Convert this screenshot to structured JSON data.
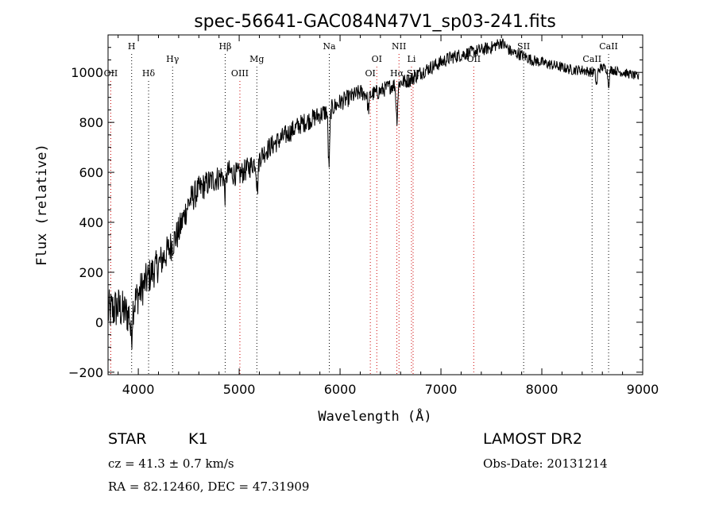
{
  "chart_data": {
    "type": "line",
    "title": "spec-56641-GAC084N47V1_sp03-241.fits",
    "xlabel": "Wavelength (Å)",
    "ylabel": "Flux (relative)",
    "xlim": [
      3700,
      9000
    ],
    "ylim": [
      -210,
      1150
    ],
    "x_ticks": [
      4000,
      5000,
      6000,
      7000,
      8000,
      9000
    ],
    "y_ticks": [
      -200,
      0,
      200,
      400,
      600,
      800,
      1000
    ],
    "x_tick_labels": [
      "4000",
      "5000",
      "6000",
      "7000",
      "8000",
      "9000"
    ],
    "y_tick_labels": [
      "−200",
      "0",
      "200",
      "400",
      "600",
      "800",
      "1000"
    ],
    "grid": false,
    "line_color": "#000000",
    "marker_color_emission": "#cc0000",
    "marker_color_absorption": "#000000",
    "continuum": {
      "x": [
        3700,
        3800,
        3900,
        4000,
        4100,
        4200,
        4300,
        4400,
        4500,
        4600,
        4700,
        4800,
        4900,
        5000,
        5100,
        5200,
        5300,
        5400,
        5500,
        5600,
        5700,
        5800,
        5900,
        6000,
        6100,
        6200,
        6300,
        6400,
        6500,
        6600,
        6700,
        6800,
        6900,
        7000,
        7100,
        7200,
        7300,
        7400,
        7500,
        7600,
        7700,
        7800,
        7900,
        8000,
        8100,
        8200,
        8300,
        8400,
        8500,
        8600,
        8700,
        8800,
        8900,
        8960
      ],
      "y": [
        40,
        60,
        30,
        110,
        180,
        230,
        290,
        360,
        480,
        530,
        560,
        580,
        600,
        590,
        620,
        660,
        700,
        730,
        760,
        790,
        810,
        830,
        850,
        880,
        900,
        920,
        910,
        925,
        945,
        960,
        970,
        1000,
        1020,
        1040,
        1060,
        1070,
        1080,
        1090,
        1100,
        1120,
        1080,
        1070,
        1050,
        1040,
        1030,
        1020,
        1010,
        1010,
        1000,
        1020,
        1010,
        1000,
        990,
        980
      ]
    },
    "absorption_features": [
      {
        "x": 3930,
        "depth": 120
      },
      {
        "x": 4860,
        "depth": 80
      },
      {
        "x": 5180,
        "depth": 120
      },
      {
        "x": 5890,
        "depth": 220
      },
      {
        "x": 6280,
        "depth": 60
      },
      {
        "x": 6563,
        "depth": 140
      },
      {
        "x": 8542,
        "depth": 60
      },
      {
        "x": 8662,
        "depth": 60
      }
    ],
    "noise_amplitude": [
      90,
      70,
      55,
      45,
      40,
      35,
      30,
      28,
      25,
      22,
      20,
      18
    ],
    "line_markers": [
      {
        "label": "H",
        "x": 3934,
        "row": 0,
        "kind": "absorption"
      },
      {
        "label": "OII",
        "x": 3727,
        "row": 2,
        "kind": "emission"
      },
      {
        "label": "Hδ",
        "x": 4102,
        "row": 2,
        "kind": "absorption"
      },
      {
        "label": "Hγ",
        "x": 4340,
        "row": 1,
        "kind": "absorption"
      },
      {
        "label": "Hβ",
        "x": 4861,
        "row": 0,
        "kind": "absorption"
      },
      {
        "label": "OIII",
        "x": 5007,
        "row": 2,
        "kind": "emission"
      },
      {
        "label": "Mg",
        "x": 5175,
        "row": 1,
        "kind": "absorption"
      },
      {
        "label": "Na",
        "x": 5893,
        "row": 0,
        "kind": "absorption"
      },
      {
        "label": "OI",
        "x": 6300,
        "row": 2,
        "kind": "emission"
      },
      {
        "label": "OI",
        "x": 6364,
        "row": 1,
        "kind": "emission"
      },
      {
        "label": "NII",
        "x": 6584,
        "row": 0,
        "kind": "emission"
      },
      {
        "label": "Hα",
        "x": 6563,
        "row": 2,
        "kind": "emission"
      },
      {
        "label": "Li",
        "x": 6708,
        "row": 1,
        "kind": "emission"
      },
      {
        "label": "SII",
        "x": 6724,
        "row": 2,
        "kind": "emission"
      },
      {
        "label": "OII",
        "x": 7325,
        "row": 1,
        "kind": "emission"
      },
      {
        "label": "SII",
        "x": 7820,
        "row": 0,
        "kind": "absorption"
      },
      {
        "label": "CaII",
        "x": 8498,
        "row": 1,
        "kind": "absorption"
      },
      {
        "label": "CaII",
        "x": 8662,
        "row": 0,
        "kind": "absorption"
      }
    ]
  },
  "info": {
    "object_class": "STAR",
    "subclass": "K1",
    "survey": "LAMOST DR2",
    "redshift_line": "cz = 41.3 ± 0.7 km/s",
    "obs_date_line": "Obs-Date: 20131214",
    "coords_line": "RA =  82.12460, DEC =  47.31909"
  }
}
